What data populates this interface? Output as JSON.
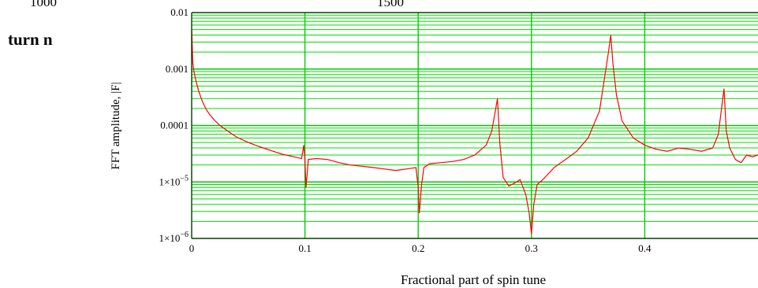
{
  "top_fragment": {
    "left": "1000",
    "right": "1500"
  },
  "side_label": "turn n",
  "chart_data": {
    "type": "line",
    "xlabel": "Fractional part of spin tune",
    "ylabel": "FFT amplitude, |F|",
    "xlim": [
      0,
      0.5
    ],
    "ylim": [
      1e-06,
      0.01
    ],
    "yscale": "log",
    "grid": true,
    "x_ticks": [
      0,
      0.1,
      0.2,
      0.3,
      0.4
    ],
    "x_tick_labels": [
      "0",
      "0.1",
      "0.2",
      "0.3",
      "0.4"
    ],
    "y_ticks": [
      1e-06,
      1e-05,
      0.0001,
      0.001,
      0.01
    ],
    "y_tick_labels": [
      {
        "text": "0.01",
        "base": "",
        "exp": ""
      },
      {
        "text": "0.001",
        "base": "",
        "exp": ""
      },
      {
        "text": "0.0001",
        "base": "",
        "exp": ""
      },
      {
        "text": "",
        "base": "1×10",
        "exp": "−5"
      },
      {
        "text": "",
        "base": "1×10",
        "exp": "−6"
      }
    ],
    "series": [
      {
        "color": "#ff0000",
        "points": [
          [
            0.0,
            0.005
          ],
          [
            0.001,
            0.0013
          ],
          [
            0.002,
            0.0009
          ],
          [
            0.004,
            0.0006
          ],
          [
            0.006,
            0.00042
          ],
          [
            0.008,
            0.00032
          ],
          [
            0.01,
            0.00025
          ],
          [
            0.013,
            0.00019
          ],
          [
            0.016,
            0.000155
          ],
          [
            0.02,
            0.000125
          ],
          [
            0.025,
            0.0001
          ],
          [
            0.03,
            8.5e-05
          ],
          [
            0.035,
            7.2e-05
          ],
          [
            0.04,
            6.2e-05
          ],
          [
            0.05,
            5e-05
          ],
          [
            0.06,
            4.2e-05
          ],
          [
            0.07,
            3.6e-05
          ],
          [
            0.08,
            3.1e-05
          ],
          [
            0.09,
            2.8e-05
          ],
          [
            0.097,
            2.6e-05
          ],
          [
            0.099,
            4.5e-05
          ],
          [
            0.1,
            2.4e-05
          ],
          [
            0.101,
            8e-06
          ],
          [
            0.103,
            2.5e-05
          ],
          [
            0.11,
            2.6e-05
          ],
          [
            0.12,
            2.5e-05
          ],
          [
            0.13,
            2.2e-05
          ],
          [
            0.14,
            2e-05
          ],
          [
            0.15,
            1.9e-05
          ],
          [
            0.16,
            1.8e-05
          ],
          [
            0.17,
            1.7e-05
          ],
          [
            0.18,
            1.6e-05
          ],
          [
            0.19,
            1.7e-05
          ],
          [
            0.198,
            1.8e-05
          ],
          [
            0.2,
            8e-06
          ],
          [
            0.201,
            2.8e-06
          ],
          [
            0.203,
            9e-06
          ],
          [
            0.205,
            1.8e-05
          ],
          [
            0.21,
            2.1e-05
          ],
          [
            0.22,
            2.2e-05
          ],
          [
            0.23,
            2.3e-05
          ],
          [
            0.24,
            2.5e-05
          ],
          [
            0.25,
            3e-05
          ],
          [
            0.26,
            4.5e-05
          ],
          [
            0.265,
            8e-05
          ],
          [
            0.27,
            0.0003
          ],
          [
            0.272,
            5e-05
          ],
          [
            0.275,
            1.2e-05
          ],
          [
            0.28,
            8.5e-06
          ],
          [
            0.285,
            9.5e-06
          ],
          [
            0.29,
            1.1e-05
          ],
          [
            0.295,
            6e-06
          ],
          [
            0.298,
            2.8e-06
          ],
          [
            0.3,
            1.2e-06
          ],
          [
            0.302,
            4e-06
          ],
          [
            0.305,
            9e-06
          ],
          [
            0.31,
            1.1e-05
          ],
          [
            0.32,
            1.8e-05
          ],
          [
            0.33,
            2.5e-05
          ],
          [
            0.34,
            3.5e-05
          ],
          [
            0.35,
            6e-05
          ],
          [
            0.36,
            0.00018
          ],
          [
            0.365,
            0.0008
          ],
          [
            0.368,
            0.002
          ],
          [
            0.37,
            0.004
          ],
          [
            0.372,
            0.0012
          ],
          [
            0.375,
            0.00035
          ],
          [
            0.38,
            0.00012
          ],
          [
            0.39,
            6e-05
          ],
          [
            0.4,
            4.5e-05
          ],
          [
            0.41,
            3.8e-05
          ],
          [
            0.42,
            3.5e-05
          ],
          [
            0.43,
            4e-05
          ],
          [
            0.44,
            3.8e-05
          ],
          [
            0.45,
            3.5e-05
          ],
          [
            0.46,
            4e-05
          ],
          [
            0.465,
            7e-05
          ],
          [
            0.47,
            0.00045
          ],
          [
            0.472,
            8e-05
          ],
          [
            0.475,
            4e-05
          ],
          [
            0.48,
            2.5e-05
          ],
          [
            0.485,
            2.2e-05
          ],
          [
            0.49,
            3e-05
          ],
          [
            0.495,
            2.8e-05
          ],
          [
            0.5,
            3e-05
          ]
        ]
      }
    ]
  }
}
